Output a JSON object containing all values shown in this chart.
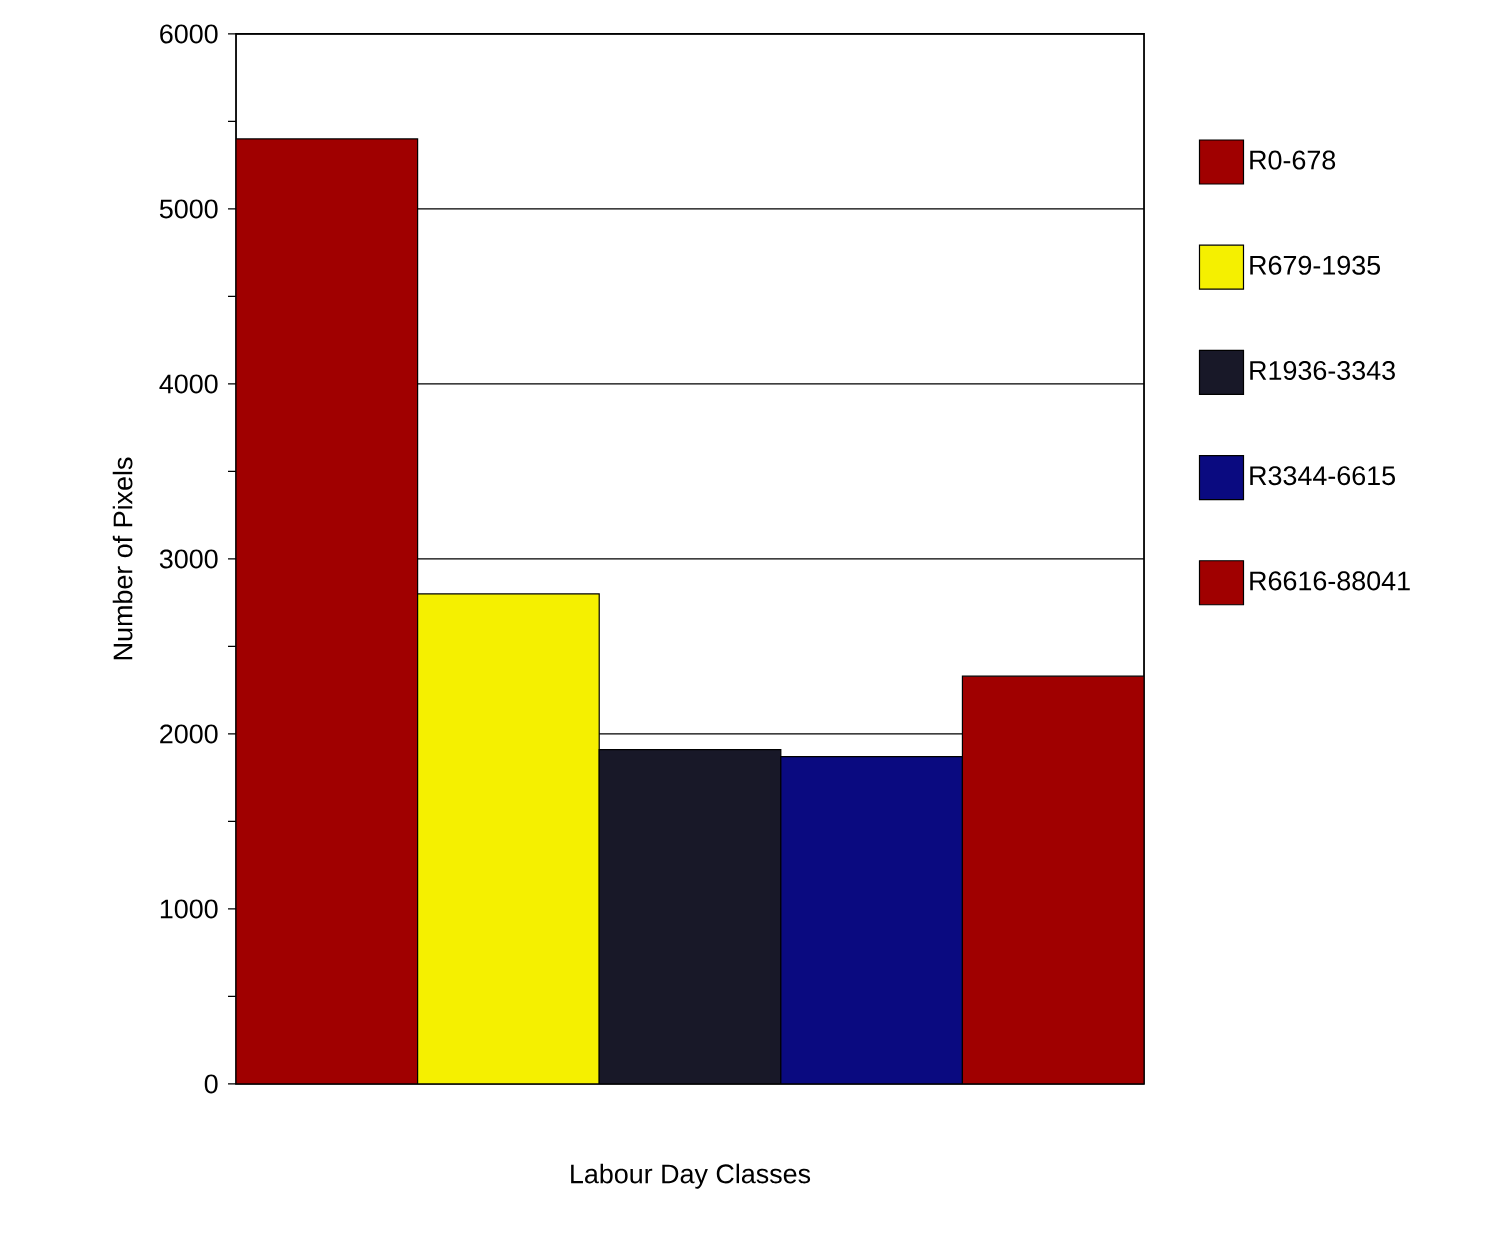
{
  "chart_data": {
    "type": "bar",
    "xlabel": "Labour Day Classes",
    "ylabel": "Number of Pixels",
    "categories": [
      null
    ],
    "series": [
      {
        "name": "R0-678",
        "color": "#a00000",
        "values": [
          5400
        ]
      },
      {
        "name": "R679-1935",
        "color": "#f5f000",
        "values": [
          2800
        ]
      },
      {
        "name": "R1936-3343",
        "color": "#181828",
        "values": [
          1910
        ]
      },
      {
        "name": "R3344-6615",
        "color": "#0a0a80",
        "values": [
          1870
        ]
      },
      {
        "name": "R6616-88041",
        "color": "#a00000",
        "values": [
          2330
        ]
      }
    ],
    "ylim": [
      0,
      6000
    ],
    "yticks": [
      0,
      {
        "value": 500,
        "label": null
      },
      1000,
      {
        "value": 1500,
        "label": null
      },
      2000,
      {
        "value": 2500,
        "label": null
      },
      3000,
      {
        "value": 3500,
        "label": null
      },
      4000,
      {
        "value": 4500,
        "label": null
      },
      5000,
      {
        "value": 5500,
        "label": null
      },
      6000
    ],
    "grid": "y",
    "legend": "right",
    "tick_labels": "y"
  }
}
